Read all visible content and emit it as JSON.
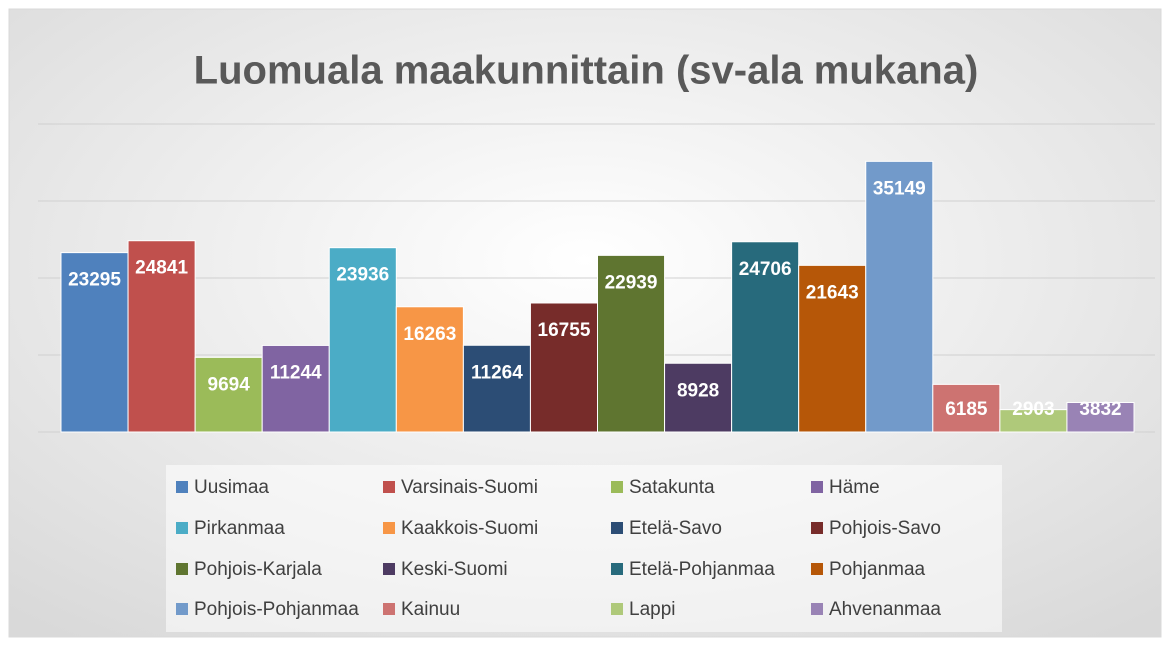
{
  "chart_data": {
    "type": "bar",
    "title": "Luomuala maakunnittain (sv-ala mukana)",
    "ylim": [
      0,
      40000
    ],
    "yticks": [
      0,
      10000,
      20000,
      30000,
      40000
    ],
    "grid": true,
    "legend": "bottom",
    "series": [
      {
        "name": "Uusimaa",
        "color": "#4f81bd",
        "values": [
          23295
        ]
      },
      {
        "name": "Varsinais-Suomi",
        "color": "#c0504d",
        "values": [
          24841
        ]
      },
      {
        "name": "Satakunta",
        "color": "#9bbb59",
        "values": [
          9694
        ]
      },
      {
        "name": "Häme",
        "color": "#8064a2",
        "values": [
          11244
        ]
      },
      {
        "name": "Pirkanmaa",
        "color": "#4bacc6",
        "values": [
          23936
        ]
      },
      {
        "name": "Kaakkois-Suomi",
        "color": "#f79646",
        "values": [
          16263
        ]
      },
      {
        "name": "Etelä-Savo",
        "color": "#2c4d75",
        "values": [
          11264
        ]
      },
      {
        "name": "Pohjois-Savo",
        "color": "#772c2a",
        "values": [
          16755
        ]
      },
      {
        "name": "Pohjois-Karjala",
        "color": "#5f7530",
        "values": [
          22939
        ]
      },
      {
        "name": "Keski-Suomi",
        "color": "#4d3b62",
        "values": [
          8928
        ]
      },
      {
        "name": "Etelä-Pohjanmaa",
        "color": "#276a7c",
        "values": [
          24706
        ]
      },
      {
        "name": "Pohjanmaa",
        "color": "#b65708",
        "values": [
          21643
        ]
      },
      {
        "name": "Pohjois-Pohjanmaa",
        "color": "#729aca",
        "values": [
          35149
        ]
      },
      {
        "name": "Kainuu",
        "color": "#cd7371",
        "values": [
          6185
        ]
      },
      {
        "name": "Lappi",
        "color": "#afc97a",
        "values": [
          2903
        ]
      },
      {
        "name": "Ahvenanmaa",
        "color": "#9983b5",
        "values": [
          3832
        ]
      }
    ]
  }
}
